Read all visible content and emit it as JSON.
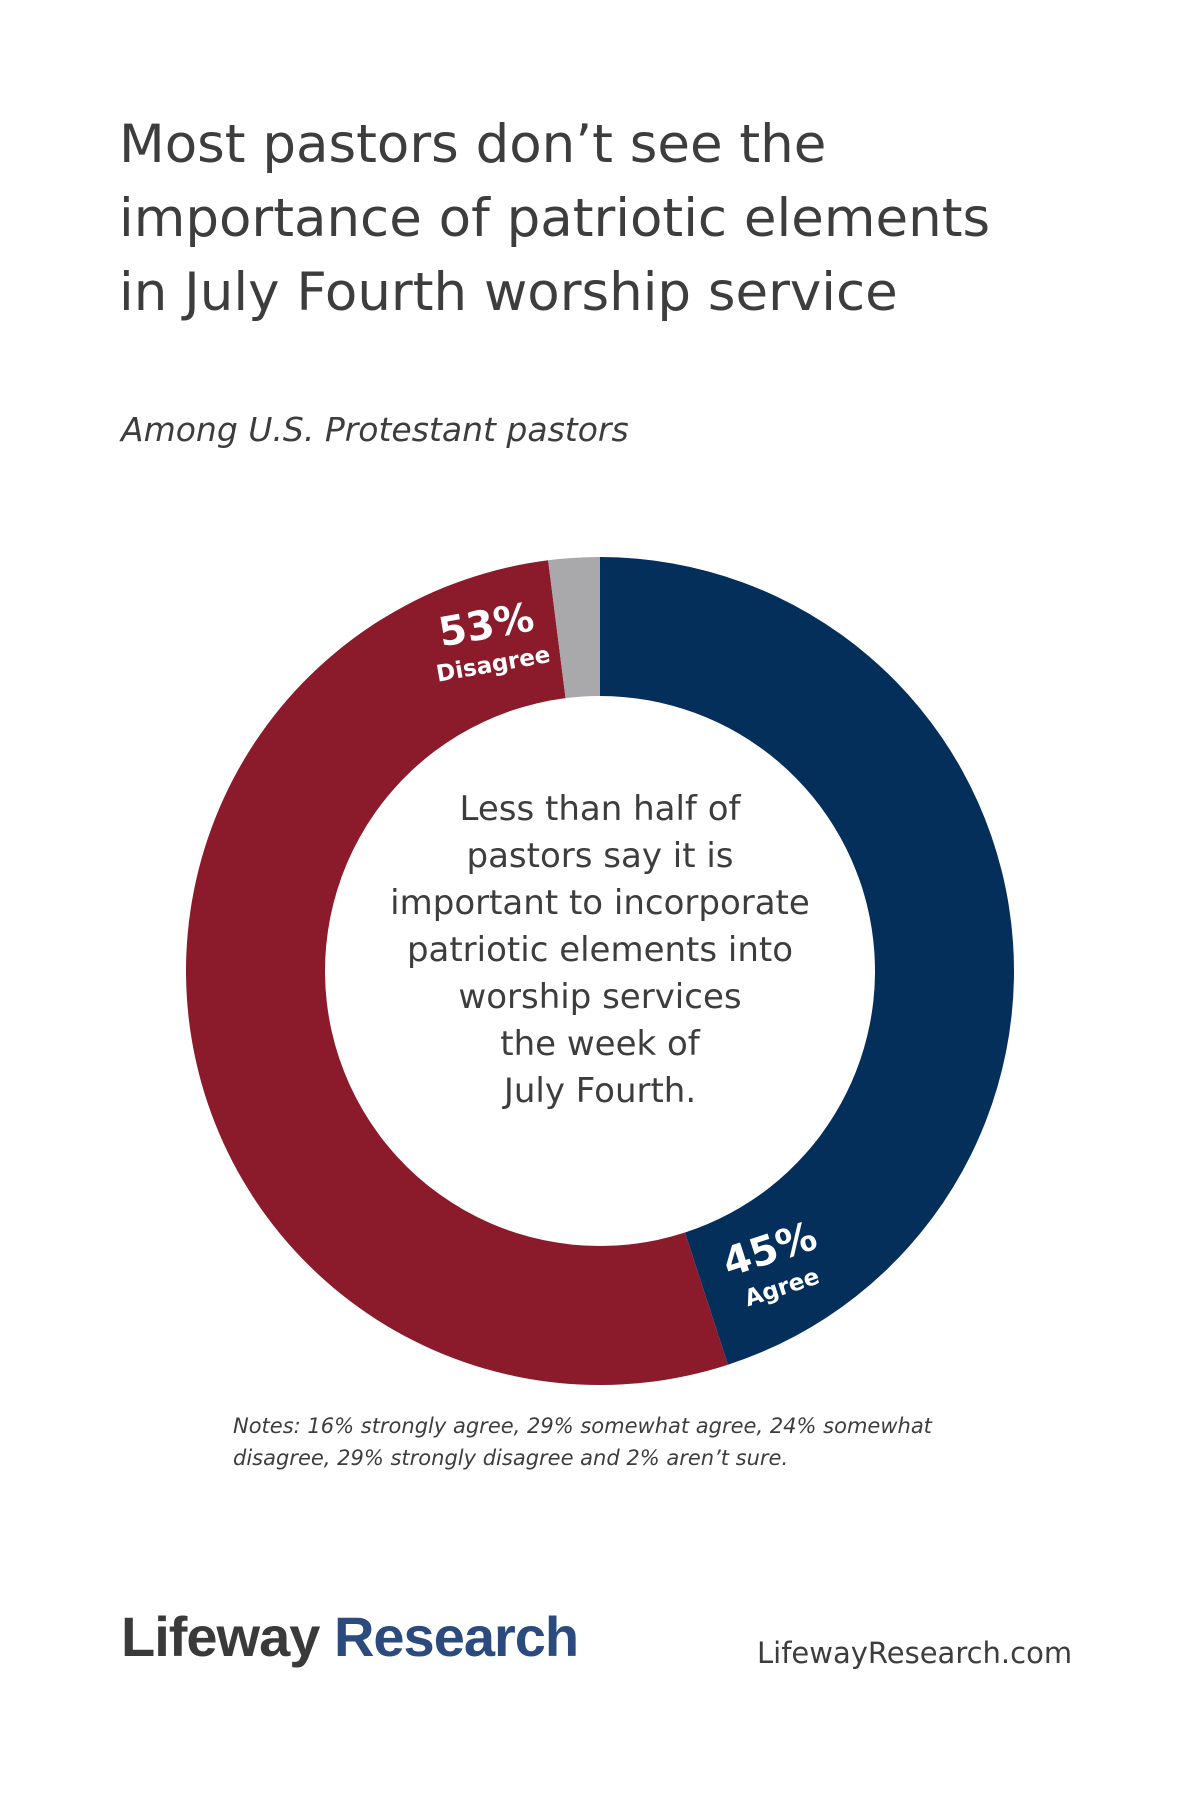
{
  "title": "Most pastors don’t see the\nimportance of patriotic elements\nin July Fourth worship service",
  "subtitle": "Among U.S. Protestant pastors",
  "center_text": "Less than half of\npastors say it is\nimportant to incorporate\npatriotic elements into\nworship services\nthe week of\nJuly Fourth.",
  "notes": "Notes: 16% strongly agree, 29% somewhat agree, 24% somewhat disagree, 29% strongly disagree and 2% aren’t sure.",
  "footer": {
    "brand_part1": "Lifeway",
    "brand_part2": "Research",
    "url": "LifewayResearch.com"
  },
  "chart_data": {
    "type": "pie",
    "donut": true,
    "slices": [
      {
        "label": "Agree",
        "value": 45,
        "value_label": "45%",
        "color": "#052f5b"
      },
      {
        "label": "Disagree",
        "value": 53,
        "value_label": "53%",
        "color": "#8b1a2b"
      },
      {
        "label": "",
        "value": 2,
        "value_label": "",
        "color": "#a9a9ab"
      }
    ]
  }
}
